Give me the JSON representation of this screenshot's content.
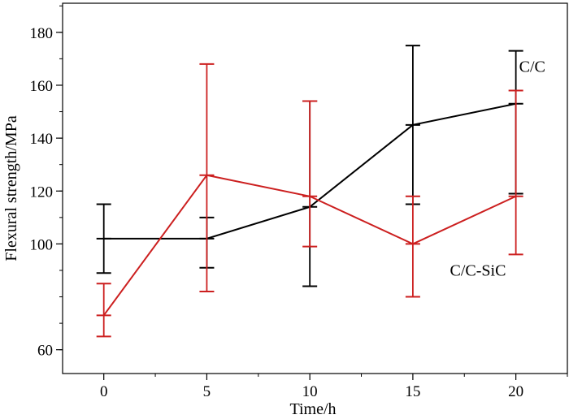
{
  "chart_data": {
    "type": "line",
    "xlabel": "Time/h",
    "ylabel": "Flexural strength/MPa",
    "x": [
      0,
      5,
      10,
      15,
      20
    ],
    "xticks": [
      0,
      5,
      10,
      15,
      20
    ],
    "yticks": [
      60,
      100,
      120,
      140,
      160,
      180
    ],
    "xlim": [
      -2,
      22.5
    ],
    "ylim": [
      51,
      191
    ],
    "grid": false,
    "series": [
      {
        "name": "C/C",
        "color": "#000000",
        "values": [
          102,
          102,
          114,
          145,
          153
        ],
        "err_low": [
          89,
          91,
          84,
          115,
          119
        ],
        "err_high": [
          115,
          110,
          154,
          175,
          173
        ]
      },
      {
        "name": "C/C-SiC",
        "color": "#cc1f1f",
        "values": [
          73,
          126,
          118,
          100,
          118
        ],
        "err_low": [
          65,
          82,
          99,
          80,
          96
        ],
        "err_high": [
          85,
          168,
          154,
          118,
          158
        ]
      }
    ]
  }
}
